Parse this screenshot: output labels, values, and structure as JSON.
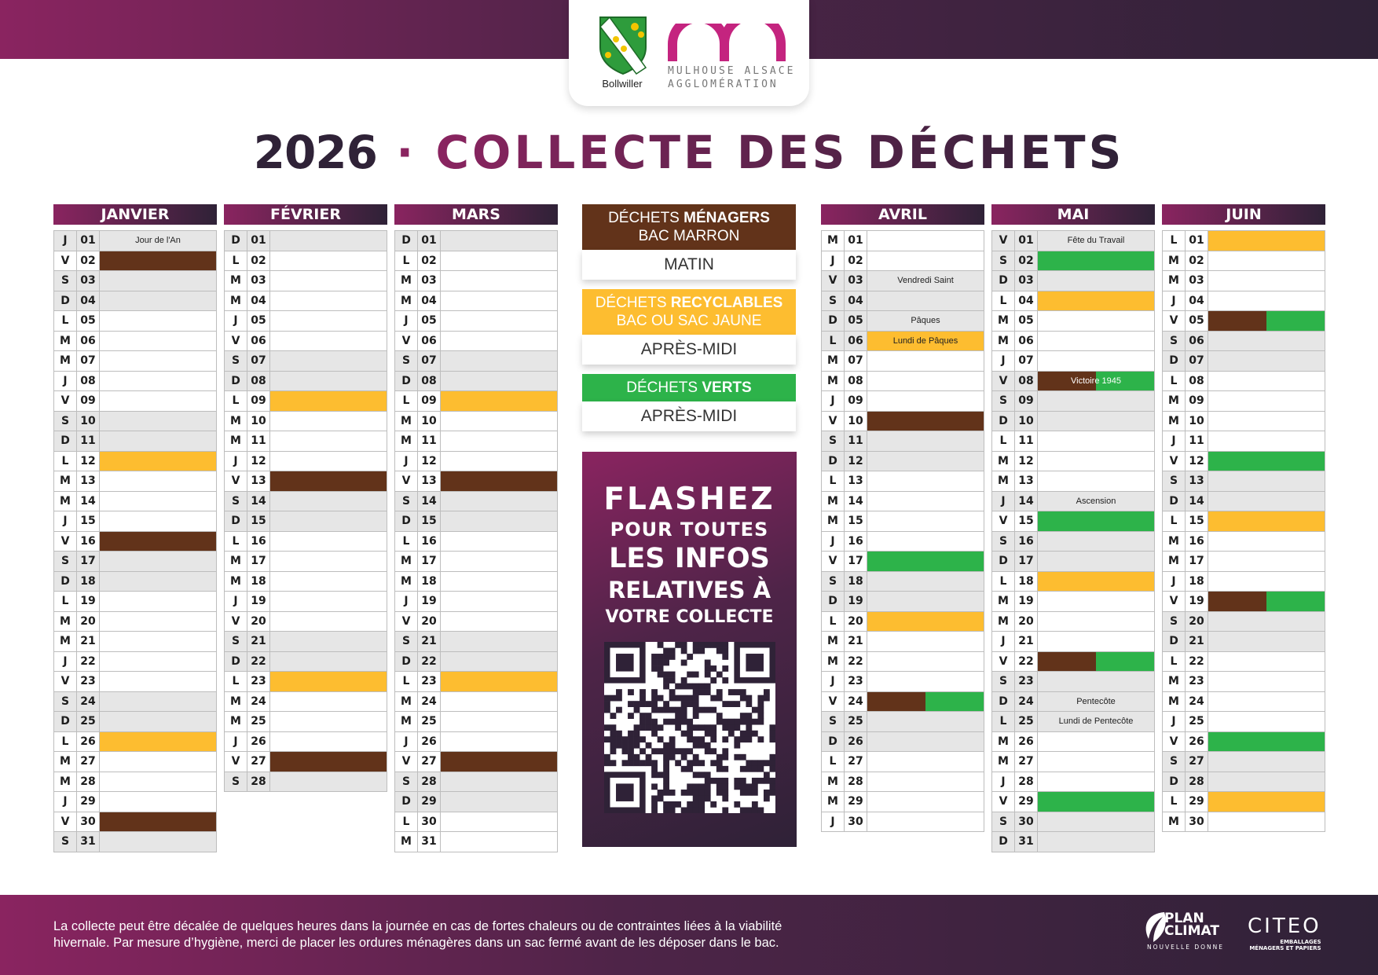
{
  "header": {
    "commune": "Bollwiller",
    "agglo_line1": "MULHOUSE ALSACE",
    "agglo_line2": "AGGLOMÉRATION"
  },
  "title": {
    "year": "2026",
    "separator": "·",
    "label": "COLLECTE DES DÉCHETS"
  },
  "colors": {
    "marron": "#62331a",
    "jaune": "#fdbd30",
    "vert": "#2db34a",
    "accent": "#8a2460",
    "dark": "#2f2237"
  },
  "legend": [
    {
      "pre": "DÉCHETS ",
      "bold": "MÉNAGERS",
      "line2": "BAC MARRON",
      "time": "MATIN",
      "color": "#62331a"
    },
    {
      "pre": "DÉCHETS ",
      "bold": "RECYCLABLES",
      "line2": "BAC OU SAC JAUNE",
      "time": "APRÈS-MIDI",
      "color": "#fdbd30"
    },
    {
      "pre": "DÉCHETS ",
      "bold": "VERTS",
      "line2": "",
      "time": "APRÈS-MIDI",
      "color": "#2db34a"
    }
  ],
  "flash": {
    "l1": "FLASHEZ",
    "l2": "POUR  TOUTES",
    "l3": "LES INFOS",
    "l4": "RELATIVES À",
    "l5": "VOTRE COLLECTE"
  },
  "months": [
    {
      "name": "JANVIER",
      "days": [
        [
          "J",
          "01",
          "",
          "Jour de l'An"
        ],
        [
          "V",
          "02",
          "M",
          ""
        ],
        [
          "S",
          "03",
          "",
          ""
        ],
        [
          "D",
          "04",
          "",
          ""
        ],
        [
          "L",
          "05",
          "",
          ""
        ],
        [
          "M",
          "06",
          "",
          ""
        ],
        [
          "M",
          "07",
          "",
          ""
        ],
        [
          "J",
          "08",
          "",
          ""
        ],
        [
          "V",
          "09",
          "",
          ""
        ],
        [
          "S",
          "10",
          "",
          ""
        ],
        [
          "D",
          "11",
          "",
          ""
        ],
        [
          "L",
          "12",
          "J",
          ""
        ],
        [
          "M",
          "13",
          "",
          ""
        ],
        [
          "M",
          "14",
          "",
          ""
        ],
        [
          "J",
          "15",
          "",
          ""
        ],
        [
          "V",
          "16",
          "M",
          ""
        ],
        [
          "S",
          "17",
          "",
          ""
        ],
        [
          "D",
          "18",
          "",
          ""
        ],
        [
          "L",
          "19",
          "",
          ""
        ],
        [
          "M",
          "20",
          "",
          ""
        ],
        [
          "M",
          "21",
          "",
          ""
        ],
        [
          "J",
          "22",
          "",
          ""
        ],
        [
          "V",
          "23",
          "",
          ""
        ],
        [
          "S",
          "24",
          "",
          ""
        ],
        [
          "D",
          "25",
          "",
          ""
        ],
        [
          "L",
          "26",
          "J",
          ""
        ],
        [
          "M",
          "27",
          "",
          ""
        ],
        [
          "M",
          "28",
          "",
          ""
        ],
        [
          "J",
          "29",
          "",
          ""
        ],
        [
          "V",
          "30",
          "M",
          ""
        ],
        [
          "S",
          "31",
          "",
          ""
        ]
      ]
    },
    {
      "name": "FÉVRIER",
      "days": [
        [
          "D",
          "01",
          "",
          ""
        ],
        [
          "L",
          "02",
          "",
          ""
        ],
        [
          "M",
          "03",
          "",
          ""
        ],
        [
          "M",
          "04",
          "",
          ""
        ],
        [
          "J",
          "05",
          "",
          ""
        ],
        [
          "V",
          "06",
          "",
          ""
        ],
        [
          "S",
          "07",
          "",
          ""
        ],
        [
          "D",
          "08",
          "",
          ""
        ],
        [
          "L",
          "09",
          "J",
          ""
        ],
        [
          "M",
          "10",
          "",
          ""
        ],
        [
          "M",
          "11",
          "",
          ""
        ],
        [
          "J",
          "12",
          "",
          ""
        ],
        [
          "V",
          "13",
          "M",
          ""
        ],
        [
          "S",
          "14",
          "",
          ""
        ],
        [
          "D",
          "15",
          "",
          ""
        ],
        [
          "L",
          "16",
          "",
          ""
        ],
        [
          "M",
          "17",
          "",
          ""
        ],
        [
          "M",
          "18",
          "",
          ""
        ],
        [
          "J",
          "19",
          "",
          ""
        ],
        [
          "V",
          "20",
          "",
          ""
        ],
        [
          "S",
          "21",
          "",
          ""
        ],
        [
          "D",
          "22",
          "",
          ""
        ],
        [
          "L",
          "23",
          "J",
          ""
        ],
        [
          "M",
          "24",
          "",
          ""
        ],
        [
          "M",
          "25",
          "",
          ""
        ],
        [
          "J",
          "26",
          "",
          ""
        ],
        [
          "V",
          "27",
          "M",
          ""
        ],
        [
          "S",
          "28",
          "",
          ""
        ]
      ]
    },
    {
      "name": "MARS",
      "days": [
        [
          "D",
          "01",
          "",
          ""
        ],
        [
          "L",
          "02",
          "",
          ""
        ],
        [
          "M",
          "03",
          "",
          ""
        ],
        [
          "M",
          "04",
          "",
          ""
        ],
        [
          "J",
          "05",
          "",
          ""
        ],
        [
          "V",
          "06",
          "",
          ""
        ],
        [
          "S",
          "07",
          "",
          ""
        ],
        [
          "D",
          "08",
          "",
          ""
        ],
        [
          "L",
          "09",
          "J",
          ""
        ],
        [
          "M",
          "10",
          "",
          ""
        ],
        [
          "M",
          "11",
          "",
          ""
        ],
        [
          "J",
          "12",
          "",
          ""
        ],
        [
          "V",
          "13",
          "M",
          ""
        ],
        [
          "S",
          "14",
          "",
          ""
        ],
        [
          "D",
          "15",
          "",
          ""
        ],
        [
          "L",
          "16",
          "",
          ""
        ],
        [
          "M",
          "17",
          "",
          ""
        ],
        [
          "M",
          "18",
          "",
          ""
        ],
        [
          "J",
          "19",
          "",
          ""
        ],
        [
          "V",
          "20",
          "",
          ""
        ],
        [
          "S",
          "21",
          "",
          ""
        ],
        [
          "D",
          "22",
          "",
          ""
        ],
        [
          "L",
          "23",
          "J",
          ""
        ],
        [
          "M",
          "24",
          "",
          ""
        ],
        [
          "M",
          "25",
          "",
          ""
        ],
        [
          "J",
          "26",
          "",
          ""
        ],
        [
          "V",
          "27",
          "M",
          ""
        ],
        [
          "S",
          "28",
          "",
          ""
        ],
        [
          "D",
          "29",
          "",
          ""
        ],
        [
          "L",
          "30",
          "",
          ""
        ],
        [
          "M",
          "31",
          "",
          ""
        ]
      ]
    },
    {
      "name": "AVRIL",
      "days": [
        [
          "M",
          "01",
          "",
          ""
        ],
        [
          "J",
          "02",
          "",
          ""
        ],
        [
          "V",
          "03",
          "",
          "Vendredi Saint"
        ],
        [
          "S",
          "04",
          "",
          ""
        ],
        [
          "D",
          "05",
          "",
          "Pâques"
        ],
        [
          "L",
          "06",
          "J",
          "Lundi de Pâques"
        ],
        [
          "M",
          "07",
          "",
          ""
        ],
        [
          "M",
          "08",
          "",
          ""
        ],
        [
          "J",
          "09",
          "",
          ""
        ],
        [
          "V",
          "10",
          "M",
          ""
        ],
        [
          "S",
          "11",
          "",
          ""
        ],
        [
          "D",
          "12",
          "",
          ""
        ],
        [
          "L",
          "13",
          "",
          ""
        ],
        [
          "M",
          "14",
          "",
          ""
        ],
        [
          "M",
          "15",
          "",
          ""
        ],
        [
          "J",
          "16",
          "",
          ""
        ],
        [
          "V",
          "17",
          "G",
          ""
        ],
        [
          "S",
          "18",
          "",
          ""
        ],
        [
          "D",
          "19",
          "",
          ""
        ],
        [
          "L",
          "20",
          "J",
          ""
        ],
        [
          "M",
          "21",
          "",
          ""
        ],
        [
          "M",
          "22",
          "",
          ""
        ],
        [
          "J",
          "23",
          "",
          ""
        ],
        [
          "V",
          "24",
          "MG",
          ""
        ],
        [
          "S",
          "25",
          "",
          ""
        ],
        [
          "D",
          "26",
          "",
          ""
        ],
        [
          "L",
          "27",
          "",
          ""
        ],
        [
          "M",
          "28",
          "",
          ""
        ],
        [
          "M",
          "29",
          "",
          ""
        ],
        [
          "J",
          "30",
          "",
          ""
        ]
      ]
    },
    {
      "name": "MAI",
      "days": [
        [
          "V",
          "01",
          "",
          "Fête du Travail"
        ],
        [
          "S",
          "02",
          "G",
          ""
        ],
        [
          "D",
          "03",
          "",
          ""
        ],
        [
          "L",
          "04",
          "J",
          ""
        ],
        [
          "M",
          "05",
          "",
          ""
        ],
        [
          "M",
          "06",
          "",
          ""
        ],
        [
          "J",
          "07",
          "",
          ""
        ],
        [
          "V",
          "08",
          "MG",
          "Victoire 1945"
        ],
        [
          "S",
          "09",
          "",
          ""
        ],
        [
          "D",
          "10",
          "",
          ""
        ],
        [
          "L",
          "11",
          "",
          ""
        ],
        [
          "M",
          "12",
          "",
          ""
        ],
        [
          "M",
          "13",
          "",
          ""
        ],
        [
          "J",
          "14",
          "",
          "Ascension"
        ],
        [
          "V",
          "15",
          "G",
          ""
        ],
        [
          "S",
          "16",
          "",
          ""
        ],
        [
          "D",
          "17",
          "",
          ""
        ],
        [
          "L",
          "18",
          "J",
          ""
        ],
        [
          "M",
          "19",
          "",
          ""
        ],
        [
          "M",
          "20",
          "",
          ""
        ],
        [
          "J",
          "21",
          "",
          ""
        ],
        [
          "V",
          "22",
          "MG",
          ""
        ],
        [
          "S",
          "23",
          "",
          ""
        ],
        [
          "D",
          "24",
          "",
          "Pentecôte"
        ],
        [
          "L",
          "25",
          "",
          "Lundi de Pentecôte"
        ],
        [
          "M",
          "26",
          "",
          ""
        ],
        [
          "M",
          "27",
          "",
          ""
        ],
        [
          "J",
          "28",
          "",
          ""
        ],
        [
          "V",
          "29",
          "G",
          ""
        ],
        [
          "S",
          "30",
          "",
          ""
        ],
        [
          "D",
          "31",
          "",
          ""
        ]
      ]
    },
    {
      "name": "JUIN",
      "days": [
        [
          "L",
          "01",
          "J",
          ""
        ],
        [
          "M",
          "02",
          "",
          ""
        ],
        [
          "M",
          "03",
          "",
          ""
        ],
        [
          "J",
          "04",
          "",
          ""
        ],
        [
          "V",
          "05",
          "MG",
          ""
        ],
        [
          "S",
          "06",
          "",
          ""
        ],
        [
          "D",
          "07",
          "",
          ""
        ],
        [
          "L",
          "08",
          "",
          ""
        ],
        [
          "M",
          "09",
          "",
          ""
        ],
        [
          "M",
          "10",
          "",
          ""
        ],
        [
          "J",
          "11",
          "",
          ""
        ],
        [
          "V",
          "12",
          "G",
          ""
        ],
        [
          "S",
          "13",
          "",
          ""
        ],
        [
          "D",
          "14",
          "",
          ""
        ],
        [
          "L",
          "15",
          "J",
          ""
        ],
        [
          "M",
          "16",
          "",
          ""
        ],
        [
          "M",
          "17",
          "",
          ""
        ],
        [
          "J",
          "18",
          "",
          ""
        ],
        [
          "V",
          "19",
          "MG",
          ""
        ],
        [
          "S",
          "20",
          "",
          ""
        ],
        [
          "D",
          "21",
          "",
          ""
        ],
        [
          "L",
          "22",
          "",
          ""
        ],
        [
          "M",
          "23",
          "",
          ""
        ],
        [
          "M",
          "24",
          "",
          ""
        ],
        [
          "J",
          "25",
          "",
          ""
        ],
        [
          "V",
          "26",
          "G",
          ""
        ],
        [
          "S",
          "27",
          "",
          ""
        ],
        [
          "D",
          "28",
          "",
          ""
        ],
        [
          "L",
          "29",
          "J",
          ""
        ],
        [
          "M",
          "30",
          "",
          ""
        ]
      ]
    }
  ],
  "footer": {
    "line1": "La collecte peut être décalée de quelques heures dans la journée en cas de fortes chaleurs ou de contraintes liées à la viabilité",
    "line2": "hivernale. Par mesure d’hygiène, merci de placer les ordures ménagères dans un sac fermé avant de les déposer dans le bac.",
    "plan_l1": "PLAN",
    "plan_l2": "CLIMAT",
    "plan_l3": "NOUVELLE DONNE",
    "citeo": "CITEO",
    "citeo_l1": "EMBALLAGES",
    "citeo_l2": "MÉNAGERS ET PAPIERS"
  }
}
